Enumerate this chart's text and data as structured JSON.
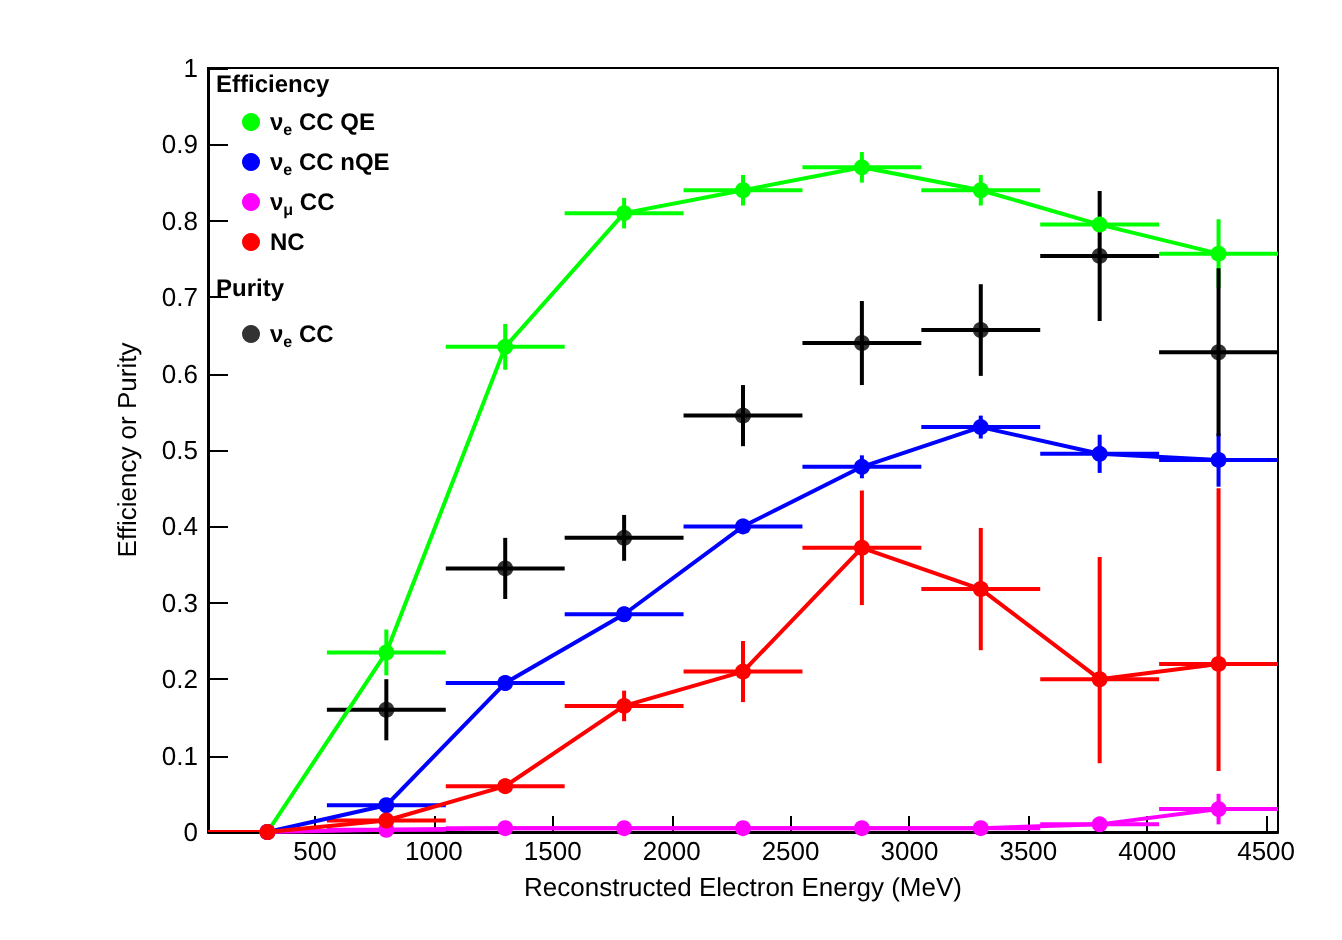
{
  "chart_data": {
    "type": "line",
    "xlabel": "Reconstructed Electron Energy (MeV)",
    "ylabel": "Efficiency or Purity",
    "legend_title": "Efficiency",
    "annotations": [
      "Purity"
    ],
    "x": [
      300,
      800,
      1300,
      1800,
      2300,
      2800,
      3300,
      3800,
      4300
    ],
    "series": [
      {
        "name": "ν$_{e}$ CC QE",
        "color": "#00ff00",
        "values": [
          0,
          0.235,
          0.635,
          0.81,
          0.84,
          0.87,
          0.84,
          0.795,
          0.757
        ],
        "errors": [
          null,
          0.03,
          0.03,
          0.02,
          0.02,
          0.02,
          0.02,
          null,
          0.045
        ],
        "xerrors": [
          null,
          250,
          250,
          250,
          250,
          250,
          250,
          250,
          250
        ]
      },
      {
        "name": "ν$_{e}$ CC nQE",
        "color": "#0000ff",
        "values": [
          0,
          0.035,
          0.195,
          0.285,
          0.4,
          0.478,
          0.53,
          0.495,
          0.487
        ],
        "errors": [
          null,
          0.005,
          0.01,
          0.01,
          0.01,
          0.015,
          0.015,
          0.025,
          0.035
        ],
        "xerrors": [
          null,
          250,
          250,
          250,
          250,
          250,
          250,
          250,
          250
        ]
      },
      {
        "name": "ν$_{μ}$ CC",
        "color": "#ff00ff",
        "values": [
          0,
          0.003,
          0.005,
          0.005,
          0.005,
          0.005,
          0.005,
          0.01,
          0.03
        ],
        "errors": [
          null,
          null,
          null,
          null,
          null,
          null,
          null,
          null,
          0.02
        ],
        "xerrors": [
          null,
          250,
          250,
          250,
          250,
          250,
          250,
          250,
          250
        ]
      },
      {
        "name": "NC",
        "color": "#ff0000",
        "values": [
          0,
          0.015,
          0.06,
          0.165,
          0.21,
          0.372,
          0.318,
          0.2,
          0.22
        ],
        "errors": [
          null,
          null,
          0.01,
          0.02,
          0.04,
          0.075,
          0.08,
          [
            0.09,
            0.36
          ],
          [
            0.08,
            0.45
          ]
        ],
        "xerrors": [
          250,
          250,
          250,
          250,
          250,
          250,
          250,
          250,
          250
        ]
      },
      {
        "name": "ν$_{e}$ CC",
        "color": "#000000",
        "type": "scatter",
        "values": [
          null,
          0.16,
          0.345,
          0.385,
          0.545,
          0.64,
          0.657,
          0.754,
          0.628
        ],
        "errors": [
          null,
          0.04,
          0.04,
          0.03,
          0.04,
          0.055,
          0.06,
          0.085,
          0.11
        ],
        "xerrors": [
          null,
          250,
          250,
          250,
          250,
          250,
          250,
          250,
          250
        ]
      }
    ],
    "xlim": [
      50,
      4550
    ],
    "xticks": [
      500,
      1000,
      1500,
      2000,
      2500,
      3000,
      3500,
      4000,
      4500
    ],
    "ylim": [
      0,
      1
    ],
    "yticks": [
      0,
      0.1,
      0.2,
      0.3,
      0.4,
      0.5,
      0.6,
      0.7,
      0.8,
      0.9,
      1
    ],
    "grid": false,
    "legend": "top left",
    "marker": "circle",
    "line_style": "solid"
  }
}
